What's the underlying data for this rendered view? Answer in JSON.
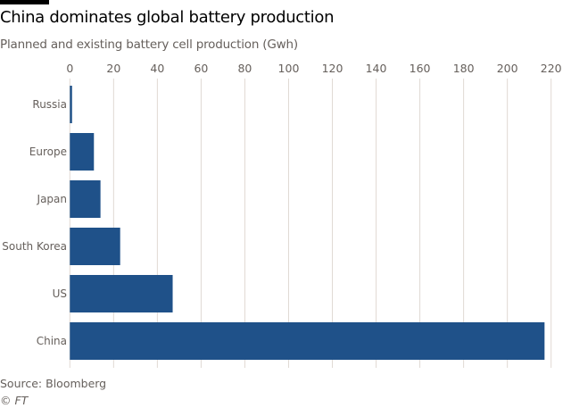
{
  "chart_data": {
    "type": "bar",
    "orientation": "horizontal",
    "title": "China dominates global battery production",
    "subtitle": "Planned and existing battery cell production (Gwh)",
    "categories": [
      "Russia",
      "Europe",
      "Japan",
      "South Korea",
      "US",
      "China"
    ],
    "values": [
      1,
      11,
      14,
      23,
      47,
      217
    ],
    "xlim": [
      0,
      220
    ],
    "xticks": [
      0,
      20,
      40,
      60,
      80,
      100,
      120,
      140,
      160,
      180,
      200,
      220
    ],
    "grid": true,
    "bar_color": "#1f5189",
    "grid_color": "#e0d9d3",
    "source": "Source: Bloomberg",
    "credit": "© FT"
  }
}
